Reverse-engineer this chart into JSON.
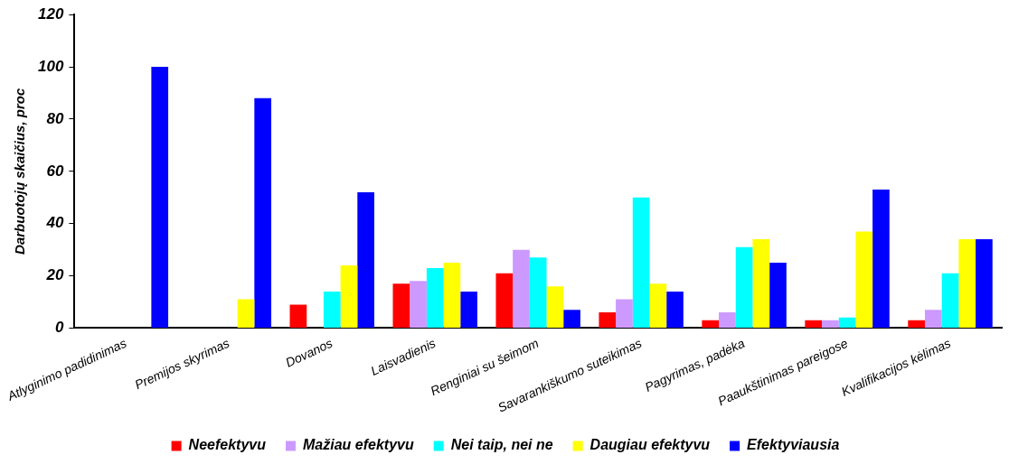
{
  "chart_data": {
    "type": "bar",
    "ylabel": "Darbuotojų skaičius, proc",
    "categories": [
      "Atlyginimo padidinimas",
      "Premijos skyrimas",
      "Dovanos",
      "Laisvadienis",
      "Renginiai su šeimom",
      "Savarankiškumo suteikimas",
      "Pagyrimas, padėka",
      "Paaukštinimas pareigose",
      "Kvalifikacijos kėlimas"
    ],
    "series": [
      {
        "name": "Neefektyvu",
        "color": "#ff0000",
        "values": [
          null,
          null,
          9,
          17,
          21,
          6,
          3,
          3,
          3
        ]
      },
      {
        "name": "Mažiau efektyvu",
        "color": "#cc99ff",
        "values": [
          null,
          null,
          null,
          18,
          30,
          11,
          6,
          3,
          7
        ]
      },
      {
        "name": "Nei taip, nei ne",
        "color": "#00ffff",
        "values": [
          null,
          null,
          14,
          23,
          27,
          50,
          31,
          4,
          21
        ]
      },
      {
        "name": "Daugiau efektyvu",
        "color": "#ffff00",
        "values": [
          null,
          11,
          24,
          25,
          16,
          17,
          34,
          37,
          34
        ]
      },
      {
        "name": "Efektyviausia",
        "color": "#0000ff",
        "values": [
          100,
          88,
          52,
          14,
          7,
          14,
          25,
          53,
          34
        ]
      }
    ],
    "ylim": [
      0,
      120
    ],
    "yticks": [
      0,
      20,
      40,
      60,
      80,
      100,
      120
    ],
    "grid": false,
    "legend": "bottom"
  }
}
